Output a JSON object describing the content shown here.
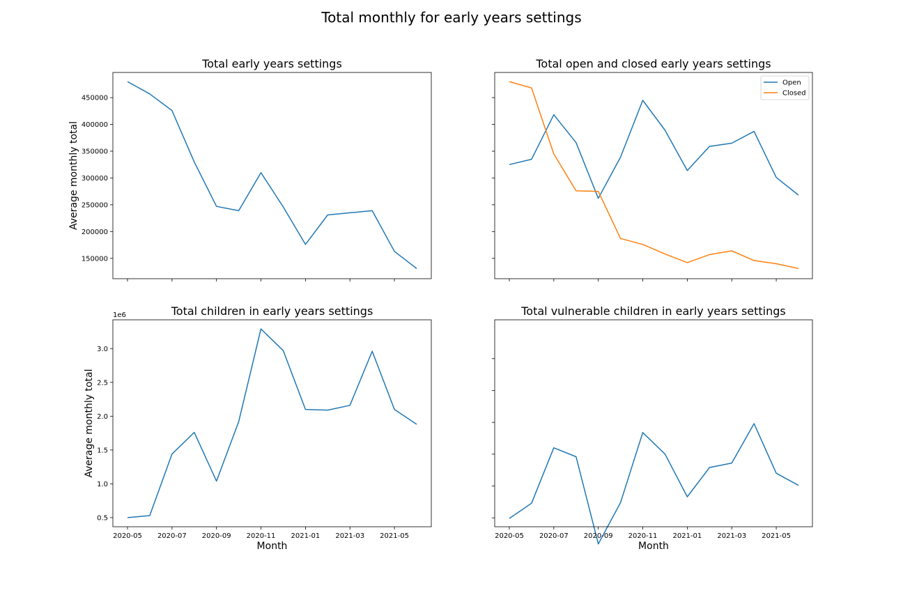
{
  "figure": {
    "title": "Total monthly for early years settings"
  },
  "colors": {
    "open": "#1f77b4",
    "closed": "#ff7f0e",
    "axis": "#000000"
  },
  "chart_data": [
    {
      "id": "total-settings",
      "type": "line",
      "title": "Total early years settings",
      "xlabel": "",
      "ylabel": "Average monthly total",
      "x": [
        "2020-05",
        "2020-06",
        "2020-07",
        "2020-08",
        "2020-09",
        "2020-10",
        "2020-11",
        "2020-12",
        "2021-01",
        "2021-02",
        "2021-03",
        "2021-04",
        "2021-05",
        "2021-06"
      ],
      "xticks": [
        "2020-05",
        "2020-07",
        "2020-09",
        "2020-11",
        "2021-01",
        "2021-03",
        "2021-05"
      ],
      "show_xticklabels": false,
      "ylim": [
        112000,
        497000
      ],
      "yticks": [
        150000,
        200000,
        250000,
        300000,
        350000,
        400000,
        450000
      ],
      "yticklabels": [
        "150000",
        "200000",
        "250000",
        "300000",
        "350000",
        "400000",
        "450000"
      ],
      "show_yticklabels": true,
      "offset_label": "",
      "series": [
        {
          "values": [
            480000,
            457000,
            426000,
            330000,
            247000,
            239000,
            310000,
            246000,
            176000,
            231000,
            235000,
            239000,
            163000,
            131000
          ]
        }
      ],
      "legend": null
    },
    {
      "id": "open-closed",
      "type": "line",
      "title": "Total open and closed early years settings",
      "xlabel": "",
      "ylabel": "",
      "x": [
        "2020-05",
        "2020-06",
        "2020-07",
        "2020-08",
        "2020-09",
        "2020-10",
        "2020-11",
        "2020-12",
        "2021-01",
        "2021-02",
        "2021-03",
        "2021-04",
        "2021-05",
        "2021-06"
      ],
      "xticks": [
        "2020-05",
        "2020-07",
        "2020-09",
        "2020-11",
        "2021-01",
        "2021-03",
        "2021-05"
      ],
      "show_xticklabels": false,
      "ylim": [
        112000,
        497000
      ],
      "yticks": [
        150000,
        200000,
        250000,
        300000,
        350000,
        400000,
        450000
      ],
      "yticklabels": [],
      "show_yticklabels": false,
      "offset_label": "",
      "series": [
        {
          "name": "Open",
          "color": "#1f77b4",
          "values": [
            325000,
            335000,
            418000,
            366000,
            262000,
            339000,
            445000,
            389000,
            314000,
            359000,
            365000,
            387000,
            301000,
            268000
          ]
        },
        {
          "name": "Closed",
          "color": "#ff7f0e",
          "values": [
            480000,
            468000,
            345000,
            276000,
            275000,
            187000,
            176000,
            158000,
            142000,
            157000,
            164000,
            146000,
            140000,
            131000
          ]
        }
      ],
      "legend": "top-right"
    },
    {
      "id": "total-children",
      "type": "line",
      "title": "Total children in early years settings",
      "xlabel": "Month",
      "ylabel": "Average monthly total",
      "x": [
        "2020-05",
        "2020-06",
        "2020-07",
        "2020-08",
        "2020-09",
        "2020-10",
        "2020-11",
        "2020-12",
        "2021-01",
        "2021-02",
        "2021-03",
        "2021-04",
        "2021-05",
        "2021-06"
      ],
      "xticks": [
        "2020-05",
        "2020-07",
        "2020-09",
        "2020-11",
        "2021-01",
        "2021-03",
        "2021-05"
      ],
      "show_xticklabels": true,
      "ylim": [
        0.365,
        3.425
      ],
      "yticks": [
        0.5,
        1.0,
        1.5,
        2.0,
        2.5,
        3.0
      ],
      "yticklabels": [
        "0.5",
        "1.0",
        "1.5",
        "2.0",
        "2.5",
        "3.0"
      ],
      "show_yticklabels": true,
      "offset_label": "1e6",
      "series": [
        {
          "values": [
            0.5,
            0.53,
            1.44,
            1.76,
            1.04,
            1.92,
            3.29,
            2.97,
            2.1,
            2.09,
            2.16,
            2.96,
            2.1,
            1.88
          ]
        }
      ],
      "legend": null
    },
    {
      "id": "vulnerable-children",
      "type": "line",
      "title": "Total vulnerable children in early years settings",
      "xlabel": "Month",
      "ylabel": "",
      "x": [
        "2020-05",
        "2020-06",
        "2020-07",
        "2020-08",
        "2020-09",
        "2020-10",
        "2020-11",
        "2020-12",
        "2021-01",
        "2021-02",
        "2021-03",
        "2021-04",
        "2021-05",
        "2021-06"
      ],
      "xticks": [
        "2020-05",
        "2020-07",
        "2020-09",
        "2020-11",
        "2021-01",
        "2021-03",
        "2021-05"
      ],
      "show_xticklabels": true,
      "ylim": [
        0.36,
        3.61
      ],
      "yticks": [
        0.5,
        1.0,
        1.5,
        2.0,
        2.5,
        3.0
      ],
      "yticklabels": [],
      "show_yticklabels": false,
      "offset_label": "",
      "series": [
        {
          "values": [
            0.49,
            0.73,
            1.6,
            1.46,
            0.09,
            0.74,
            1.84,
            1.5,
            0.83,
            1.29,
            1.36,
            1.98,
            1.2,
            1.01
          ]
        }
      ],
      "legend": null
    }
  ]
}
